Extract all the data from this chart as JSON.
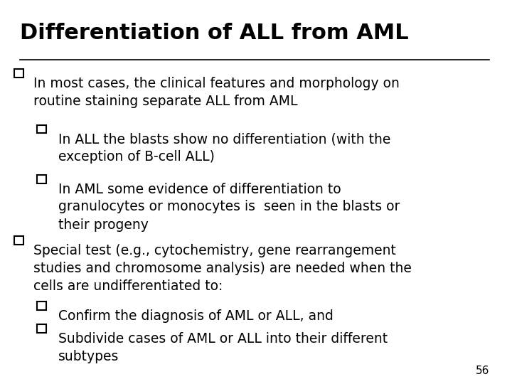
{
  "title": "Differentiation of ALL from AML",
  "background_color": "#ffffff",
  "text_color": "#000000",
  "title_fontsize": 22,
  "body_fontsize": 13.5,
  "page_number": "56",
  "lines": [
    {
      "level": 0,
      "text": "In most cases, the clinical features and morphology on\nroutine staining separate ALL from AML",
      "bullet": true
    },
    {
      "level": 1,
      "text": "In ALL the blasts show no differentiation (with the\nexception of B-cell ALL)",
      "bullet": true
    },
    {
      "level": 1,
      "text": "In AML some evidence of differentiation to\ngranulocytes or monocytes is  seen in the blasts or\ntheir progeny",
      "bullet": true
    },
    {
      "level": 0,
      "text": "Special test (e.g., cytochemistry, gene rearrangement\nstudies and chromosome analysis) are needed when the\ncells are undifferentiated to:",
      "bullet": true
    },
    {
      "level": 1,
      "text": "Confirm the diagnosis of AML or ALL, and",
      "bullet": true
    },
    {
      "level": 1,
      "text": "Subdivide cases of AML or ALL into their different\nsubtypes",
      "bullet": true
    }
  ]
}
